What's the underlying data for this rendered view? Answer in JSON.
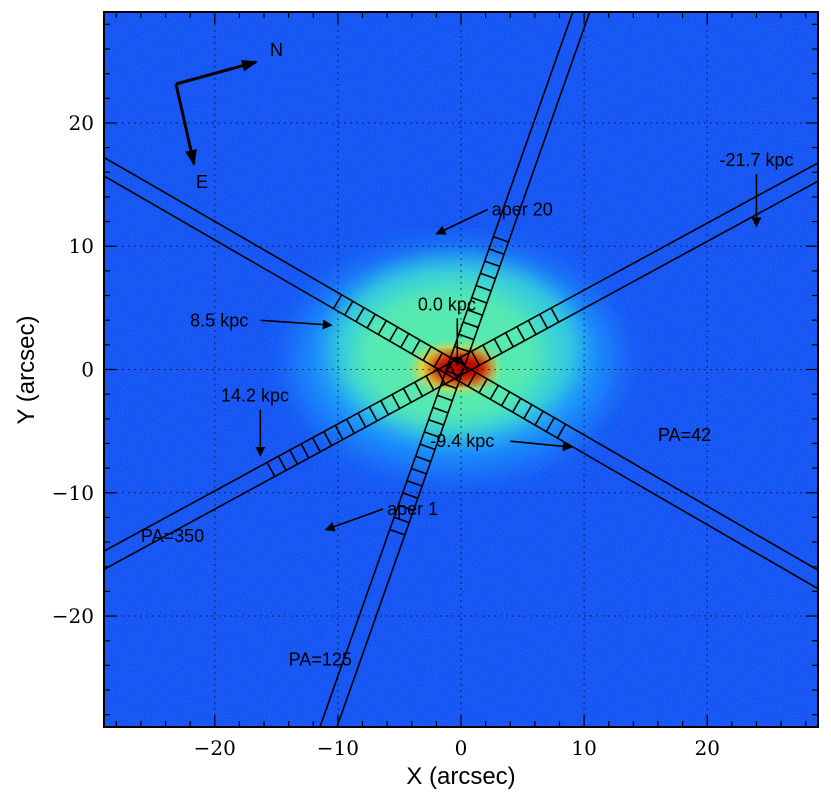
{
  "chart_data": {
    "type": "heatmap",
    "title": "",
    "xlabel": "X (arcsec)",
    "ylabel": "Y (arcsec)",
    "xlim": [
      -29,
      29
    ],
    "ylim": [
      -29,
      29
    ],
    "xticks": [
      -20,
      -10,
      0,
      10,
      20
    ],
    "yticks": [
      -20,
      -10,
      0,
      10,
      20
    ],
    "xtick_labels": [
      "−20",
      "−10",
      "0",
      "10",
      "20"
    ],
    "ytick_labels": [
      "−20",
      "−10",
      "0",
      "10",
      "20"
    ],
    "grid": true,
    "colormap": "jet",
    "colors": {
      "background": "#0a3cf0",
      "core": "#b00000",
      "ring": "#60ffa0"
    },
    "slits": [
      {
        "pa_label": "PA=350",
        "angle_deg": 28.5,
        "center": [
          -0.5,
          0
        ],
        "half_length": 34,
        "width": 1.3,
        "aperture_range": [
          -17,
          10
        ]
      },
      {
        "pa_label": "PA=125",
        "angle_deg": 70.5,
        "center": [
          -0.5,
          0
        ],
        "half_length": 36,
        "width": 1.3,
        "aperture_range": [
          -14,
          11.5
        ]
      },
      {
        "pa_label": "PA=42",
        "angle_deg": -30,
        "center": [
          -0.5,
          0
        ],
        "half_length": 37,
        "width": 1.3,
        "aperture_range": [
          -11,
          10
        ]
      }
    ],
    "annotations": [
      {
        "text": "aper 20",
        "xy": [
          -2,
          11
        ],
        "xytext": [
          2.5,
          12.5
        ]
      },
      {
        "text": "aper 1",
        "xy": [
          -11,
          -13
        ],
        "xytext": [
          -6,
          -11.8
        ]
      },
      {
        "text": "0.0 kpc",
        "xy": [
          -0.3,
          0.3
        ],
        "xytext": [
          -3.5,
          4.8
        ]
      },
      {
        "text": "8.5 kpc",
        "xy": [
          -10.5,
          3.6
        ],
        "xytext": [
          -22,
          3.5
        ]
      },
      {
        "text": "14.2 kpc",
        "xy": [
          -16.3,
          -7
        ],
        "xytext": [
          -19.5,
          -2.6
        ]
      },
      {
        "text": "-9.4 kpc",
        "xy": [
          9,
          -6.3
        ],
        "xytext": [
          -2.5,
          -6.3
        ]
      },
      {
        "text": "-21.7 kpc",
        "xy": [
          24,
          11.6
        ],
        "xytext": [
          21,
          16.5
        ]
      },
      {
        "text": "PA=350",
        "xy": null,
        "xytext": [
          -26,
          -14
        ]
      },
      {
        "text": "PA=125",
        "xy": null,
        "xytext": [
          -14,
          -24
        ]
      },
      {
        "text": "PA=42",
        "xy": null,
        "xytext": [
          16,
          -5.8
        ]
      }
    ],
    "compass": {
      "north_label": "N",
      "east_label": "E"
    }
  }
}
